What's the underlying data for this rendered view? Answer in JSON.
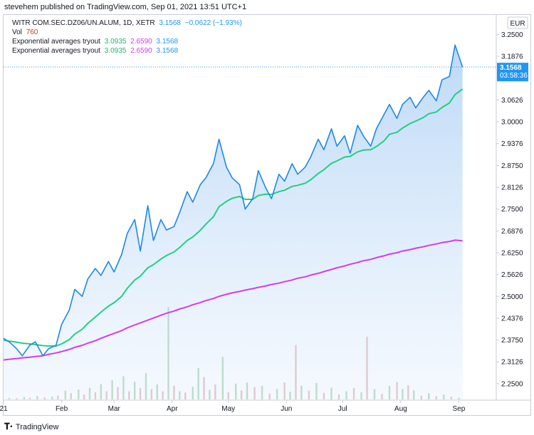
{
  "header": {
    "publish_text": "stevehem published on TradingView.com, Sep 01, 2021 13:51 UTC+1"
  },
  "legend": {
    "symbol": "WITR COM.SEC.DZ06/UN.ALUM, 1D, XETR",
    "last": "3.1568",
    "change": "−0.0622 (−1.93%)",
    "vol_label": "Vol",
    "vol_value": "760",
    "indicators": [
      {
        "name": "Exponential averages tryout",
        "v1": "3.0935",
        "v2": "2.6590",
        "v3": "3.1568"
      },
      {
        "name": "Exponential averages tryout",
        "v1": "3.0935",
        "v2": "2.6590",
        "v3": "3.1568"
      }
    ]
  },
  "axis": {
    "currency": "EUR",
    "price_badge": "3.1568",
    "countdown": "03:58:36"
  },
  "footer": {
    "brand": "TradingView"
  },
  "colors": {
    "price_line": "#2962ff",
    "area_fill": "#cfe3fb",
    "ema_fast": "#22d081",
    "ema_slow": "#d63be6",
    "vol_up": "#73b57e",
    "vol_down": "#c98787",
    "badge": "#2196f3"
  },
  "chart_data": {
    "type": "line",
    "y_ticks": [
      "3.2500",
      "3.1876",
      "3.1568",
      "3.0626",
      "3.0000",
      "2.9376",
      "2.8750",
      "2.8126",
      "2.7500",
      "2.6876",
      "2.6250",
      "2.5626",
      "2.5000",
      "2.4376",
      "2.3750",
      "2.3126",
      "2.2500"
    ],
    "ylim": [
      2.205,
      3.306
    ],
    "x_ticks": [
      {
        "label": "21",
        "day": 0
      },
      {
        "label": "Feb",
        "day": 31
      },
      {
        "label": "Mar",
        "day": 59
      },
      {
        "label": "Apr",
        "day": 90
      },
      {
        "label": "May",
        "day": 120
      },
      {
        "label": "Jun",
        "day": 151
      },
      {
        "label": "Jul",
        "day": 181
      },
      {
        "label": "Aug",
        "day": 212
      },
      {
        "label": "Sep",
        "day": 243
      }
    ],
    "xlim": [
      0,
      263
    ],
    "price_days": [
      0,
      3,
      7,
      10,
      14,
      17,
      21,
      24,
      28,
      31,
      35,
      38,
      42,
      45,
      49,
      52,
      56,
      59,
      63,
      66,
      70,
      73,
      77,
      80,
      84,
      87,
      91,
      94,
      98,
      101,
      105,
      108,
      112,
      115,
      119,
      122,
      126,
      129,
      133,
      136,
      140,
      143,
      147,
      150,
      154,
      157,
      161,
      164,
      168,
      171,
      175,
      178,
      182,
      185,
      189,
      192,
      196,
      199,
      203,
      206,
      210,
      213,
      217,
      220,
      224,
      227,
      231,
      234,
      238,
      241,
      245
    ],
    "price": [
      2.38,
      2.37,
      2.35,
      2.33,
      2.36,
      2.37,
      2.33,
      2.35,
      2.36,
      2.42,
      2.46,
      2.52,
      2.5,
      2.55,
      2.58,
      2.56,
      2.6,
      2.57,
      2.62,
      2.68,
      2.72,
      2.63,
      2.76,
      2.66,
      2.72,
      2.69,
      2.7,
      2.74,
      2.8,
      2.77,
      2.82,
      2.84,
      2.88,
      2.95,
      2.87,
      2.84,
      2.82,
      2.75,
      2.78,
      2.86,
      2.81,
      2.78,
      2.85,
      2.83,
      2.88,
      2.85,
      2.87,
      2.9,
      2.95,
      2.92,
      2.98,
      2.93,
      2.96,
      2.91,
      2.99,
      2.96,
      2.93,
      2.98,
      3.02,
      3.05,
      3.01,
      3.05,
      3.07,
      3.04,
      3.07,
      3.09,
      3.06,
      3.12,
      3.13,
      3.22,
      3.1568
    ],
    "ema_fast": [
      2.375,
      2.372,
      2.369,
      2.366,
      2.364,
      2.362,
      2.359,
      2.358,
      2.358,
      2.364,
      2.376,
      2.392,
      2.406,
      2.423,
      2.441,
      2.455,
      2.472,
      2.482,
      2.5,
      2.523,
      2.547,
      2.558,
      2.582,
      2.591,
      2.607,
      2.617,
      2.627,
      2.64,
      2.66,
      2.67,
      2.689,
      2.707,
      2.728,
      2.757,
      2.772,
      2.781,
      2.786,
      2.778,
      2.778,
      2.789,
      2.793,
      2.792,
      2.8,
      2.804,
      2.815,
      2.818,
      2.824,
      2.834,
      2.852,
      2.863,
      2.881,
      2.888,
      2.899,
      2.901,
      2.914,
      2.919,
      2.92,
      2.929,
      2.945,
      2.964,
      2.97,
      2.982,
      2.995,
      3.002,
      3.012,
      3.023,
      3.028,
      3.041,
      3.054,
      3.078,
      3.0935
    ],
    "ema_slow": [
      2.318,
      2.32,
      2.322,
      2.324,
      2.326,
      2.328,
      2.33,
      2.334,
      2.338,
      2.342,
      2.348,
      2.354,
      2.36,
      2.366,
      2.373,
      2.38,
      2.388,
      2.394,
      2.402,
      2.41,
      2.418,
      2.424,
      2.432,
      2.438,
      2.446,
      2.452,
      2.458,
      2.464,
      2.47,
      2.476,
      2.482,
      2.488,
      2.494,
      2.5,
      2.506,
      2.51,
      2.514,
      2.518,
      2.522,
      2.526,
      2.53,
      2.534,
      2.538,
      2.542,
      2.547,
      2.552,
      2.556,
      2.561,
      2.566,
      2.571,
      2.577,
      2.582,
      2.587,
      2.592,
      2.597,
      2.602,
      2.606,
      2.611,
      2.616,
      2.621,
      2.625,
      2.63,
      2.634,
      2.638,
      2.642,
      2.646,
      2.65,
      2.654,
      2.657,
      2.661,
      2.659
    ],
    "volume_max": 3400,
    "volume": [
      {
        "day": 3,
        "v": 50,
        "up": true
      },
      {
        "day": 7,
        "v": 40,
        "up": false
      },
      {
        "day": 11,
        "v": 90,
        "up": true
      },
      {
        "day": 14,
        "v": 60,
        "up": false
      },
      {
        "day": 18,
        "v": 120,
        "up": true
      },
      {
        "day": 22,
        "v": 70,
        "up": false
      },
      {
        "day": 26,
        "v": 100,
        "up": true
      },
      {
        "day": 29,
        "v": 140,
        "up": false
      },
      {
        "day": 33,
        "v": 320,
        "up": true
      },
      {
        "day": 36,
        "v": 230,
        "up": false
      },
      {
        "day": 40,
        "v": 360,
        "up": true
      },
      {
        "day": 43,
        "v": 180,
        "up": false
      },
      {
        "day": 46,
        "v": 420,
        "up": true
      },
      {
        "day": 49,
        "v": 260,
        "up": false
      },
      {
        "day": 52,
        "v": 560,
        "up": true
      },
      {
        "day": 55,
        "v": 300,
        "up": false
      },
      {
        "day": 58,
        "v": 700,
        "up": true
      },
      {
        "day": 61,
        "v": 450,
        "up": false
      },
      {
        "day": 64,
        "v": 850,
        "up": true
      },
      {
        "day": 67,
        "v": 300,
        "up": false
      },
      {
        "day": 70,
        "v": 650,
        "up": true
      },
      {
        "day": 73,
        "v": 420,
        "up": false
      },
      {
        "day": 76,
        "v": 960,
        "up": true
      },
      {
        "day": 79,
        "v": 380,
        "up": false
      },
      {
        "day": 82,
        "v": 550,
        "up": true
      },
      {
        "day": 85,
        "v": 300,
        "up": false
      },
      {
        "day": 88,
        "v": 3400,
        "up": true
      },
      {
        "day": 91,
        "v": 500,
        "up": false
      },
      {
        "day": 94,
        "v": 300,
        "up": true
      },
      {
        "day": 97,
        "v": 250,
        "up": false
      },
      {
        "day": 101,
        "v": 460,
        "up": true
      },
      {
        "day": 104,
        "v": 1150,
        "up": true
      },
      {
        "day": 107,
        "v": 820,
        "up": false
      },
      {
        "day": 110,
        "v": 350,
        "up": true
      },
      {
        "day": 113,
        "v": 550,
        "up": false
      },
      {
        "day": 117,
        "v": 1560,
        "up": true
      },
      {
        "day": 120,
        "v": 270,
        "up": false
      },
      {
        "day": 124,
        "v": 580,
        "up": true
      },
      {
        "day": 127,
        "v": 330,
        "up": false
      },
      {
        "day": 130,
        "v": 620,
        "up": true
      },
      {
        "day": 134,
        "v": 450,
        "up": false
      },
      {
        "day": 138,
        "v": 500,
        "up": true
      },
      {
        "day": 142,
        "v": 210,
        "up": false
      },
      {
        "day": 146,
        "v": 380,
        "up": true
      },
      {
        "day": 150,
        "v": 620,
        "up": false
      },
      {
        "day": 153,
        "v": 280,
        "up": true
      },
      {
        "day": 156,
        "v": 2000,
        "up": false
      },
      {
        "day": 159,
        "v": 500,
        "up": true
      },
      {
        "day": 163,
        "v": 320,
        "up": false
      },
      {
        "day": 167,
        "v": 600,
        "up": true
      },
      {
        "day": 171,
        "v": 240,
        "up": false
      },
      {
        "day": 175,
        "v": 430,
        "up": true
      },
      {
        "day": 179,
        "v": 180,
        "up": false
      },
      {
        "day": 183,
        "v": 300,
        "up": true
      },
      {
        "day": 187,
        "v": 420,
        "up": false
      },
      {
        "day": 191,
        "v": 260,
        "up": true
      },
      {
        "day": 194,
        "v": 2300,
        "up": false
      },
      {
        "day": 198,
        "v": 380,
        "up": true
      },
      {
        "day": 202,
        "v": 200,
        "up": false
      },
      {
        "day": 206,
        "v": 500,
        "up": true
      },
      {
        "day": 210,
        "v": 640,
        "up": false
      },
      {
        "day": 213,
        "v": 380,
        "up": true
      },
      {
        "day": 216,
        "v": 520,
        "up": false
      },
      {
        "day": 219,
        "v": 330,
        "up": true
      },
      {
        "day": 223,
        "v": 140,
        "up": false
      },
      {
        "day": 227,
        "v": 230,
        "up": true
      },
      {
        "day": 231,
        "v": 120,
        "up": false
      },
      {
        "day": 235,
        "v": 180,
        "up": true
      },
      {
        "day": 239,
        "v": 100,
        "up": false
      },
      {
        "day": 243,
        "v": 60,
        "up": true
      }
    ]
  }
}
